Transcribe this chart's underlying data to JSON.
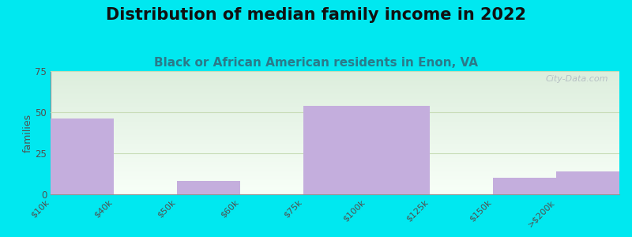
{
  "title": "Distribution of median family income in 2022",
  "subtitle": "Black or African American residents in Enon, VA",
  "categories": [
    "$10k",
    "$40k",
    "$50k",
    "$60k",
    "$75k",
    "$100k",
    "$125k",
    "$150k",
    ">$200k"
  ],
  "values": [
    46,
    0,
    8,
    0,
    54,
    54,
    0,
    10,
    14
  ],
  "bar_color": "#c4aedd",
  "background_outer": "#00e8f0",
  "background_plot_top": "#ddeedd",
  "background_plot_bottom": "#f5fff5",
  "ylabel": "families",
  "ylim": [
    0,
    75
  ],
  "yticks": [
    0,
    25,
    50,
    75
  ],
  "title_fontsize": 15,
  "subtitle_fontsize": 11,
  "watermark": "City-Data.com",
  "grid_color": "#c8ddb8"
}
